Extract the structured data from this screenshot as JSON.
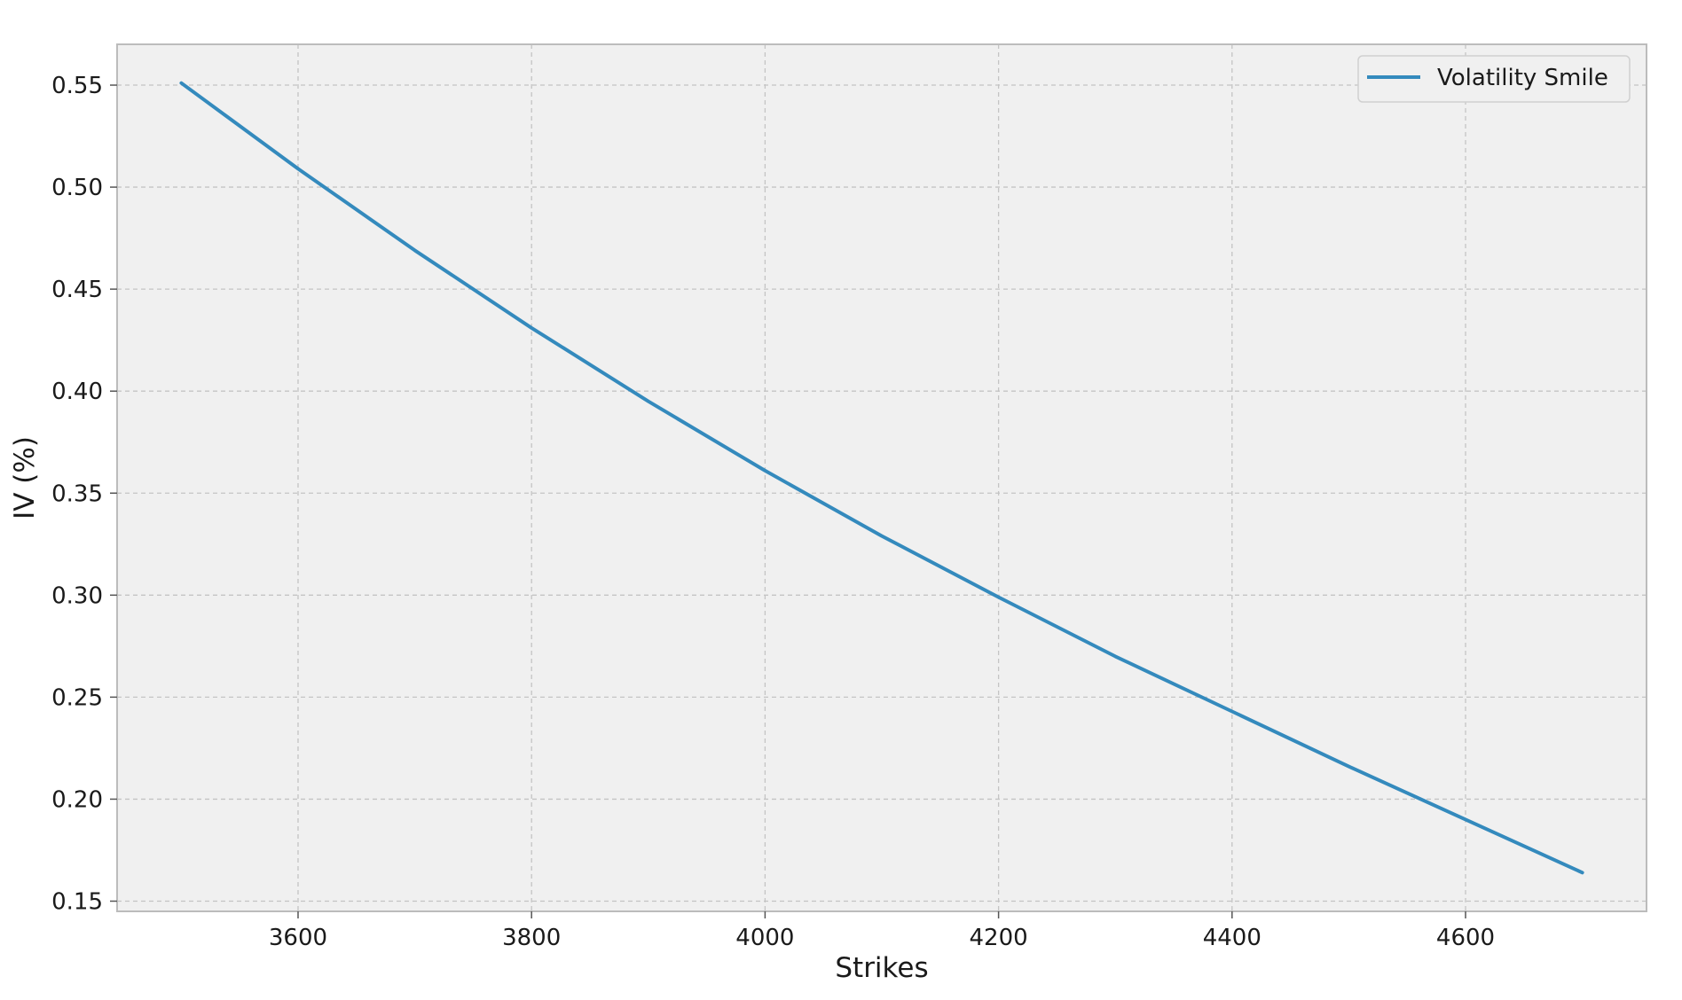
{
  "chart_data": {
    "type": "line",
    "title": "",
    "xlabel": "Strikes",
    "ylabel": "IV (%)",
    "xlim": [
      3445,
      4755
    ],
    "ylim": [
      0.145,
      0.57
    ],
    "xticks": [
      3600,
      3800,
      4000,
      4200,
      4400,
      4600
    ],
    "yticks": [
      0.15,
      0.2,
      0.25,
      0.3,
      0.35,
      0.4,
      0.45,
      0.5,
      0.55
    ],
    "xtick_labels": [
      "3600",
      "3800",
      "4000",
      "4200",
      "4400",
      "4600"
    ],
    "ytick_labels": [
      "0.15",
      "0.20",
      "0.25",
      "0.30",
      "0.35",
      "0.40",
      "0.45",
      "0.50",
      "0.55"
    ],
    "grid": true,
    "legend_position": "top-right",
    "series": [
      {
        "name": "Volatility Smile",
        "color": "#348ABD",
        "x": [
          3500,
          3600,
          3700,
          3800,
          3900,
          4000,
          4100,
          4200,
          4300,
          4400,
          4500,
          4600,
          4700
        ],
        "y": [
          0.551,
          0.509,
          0.469,
          0.431,
          0.395,
          0.361,
          0.329,
          0.299,
          0.27,
          0.243,
          0.216,
          0.19,
          0.164
        ]
      }
    ]
  },
  "colors": {
    "plot_background": "#F0F0F0",
    "grid": "#C4C4C4",
    "frame": "#BCBCBC"
  }
}
